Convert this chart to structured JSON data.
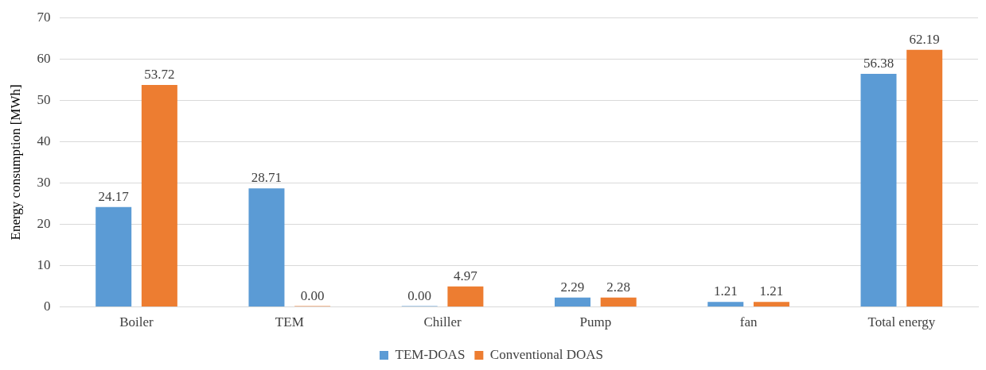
{
  "chart_data": {
    "type": "bar",
    "ylabel": "Energy consumption [MWh]",
    "categories": [
      "Boiler",
      "TEM",
      "Chiller",
      "Pump",
      "fan",
      "Total energy"
    ],
    "series": [
      {
        "name": "TEM-DOAS",
        "color": "#5b9bd5",
        "values": [
          24.17,
          28.71,
          0,
          2.29,
          1.21,
          56.38
        ],
        "value_labels": [
          "24.17",
          "28.71",
          "0.00",
          "2.29",
          "1.21",
          "56.38"
        ]
      },
      {
        "name": "Conventional DOAS",
        "color": "#ed7d31",
        "values": [
          53.72,
          0,
          4.97,
          2.28,
          1.21,
          62.19
        ],
        "value_labels": [
          "53.72",
          "0.00",
          "4.97",
          "2.28",
          "1.21",
          "62.19"
        ]
      }
    ],
    "ylim": [
      0,
      70
    ],
    "yticks": [
      0,
      10,
      20,
      30,
      40,
      50,
      60,
      70
    ],
    "grid": "y",
    "legend": "bottom"
  }
}
